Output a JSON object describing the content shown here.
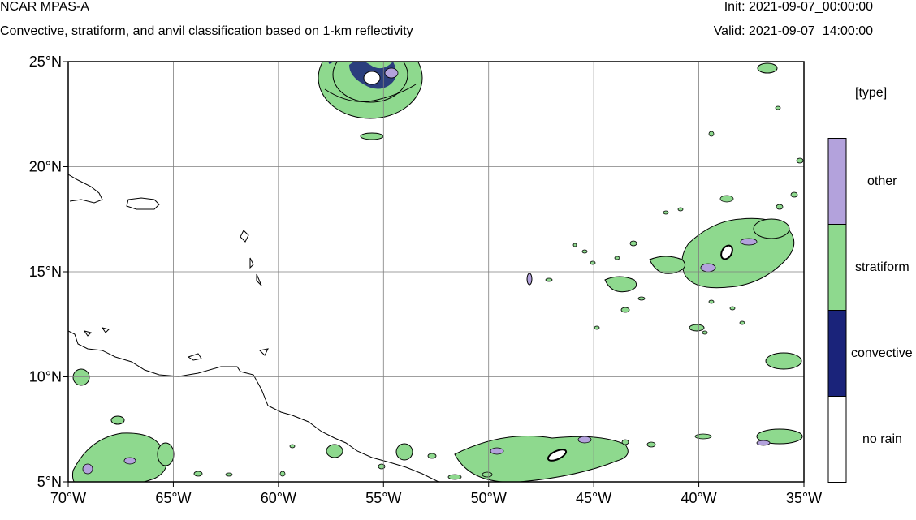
{
  "header": {
    "model": "NCAR MPAS-A",
    "description": "Convective, stratiform, and anvil classification based on 1-km reflectivity",
    "init": "Init: 2021-09-07_00:00:00",
    "valid": "Valid: 2021-09-07_14:00:00"
  },
  "map": {
    "lon_range": [
      -70,
      -35
    ],
    "lat_range": [
      5,
      25
    ],
    "lon_ticks": [
      "70°W",
      "65°W",
      "60°W",
      "55°W",
      "50°W",
      "45°W",
      "40°W",
      "35°W"
    ],
    "lat_ticks": [
      "25°N",
      "20°N",
      "15°N",
      "10°N",
      "5°N"
    ],
    "gridlines": true
  },
  "legend": {
    "title": "[type]",
    "entries": [
      {
        "label": "other",
        "color": "#b3a2dc"
      },
      {
        "label": "stratiform",
        "color": "#8ed98e"
      },
      {
        "label": "convective",
        "color": "#1a237a"
      },
      {
        "label": "no rain",
        "color": "#ffffff"
      }
    ]
  },
  "colors": {
    "stratiform": "#8ed98e",
    "convective": "#1a237a",
    "other": "#b3a2dc",
    "coast": "#000000",
    "grid": "#7f7f7f"
  }
}
